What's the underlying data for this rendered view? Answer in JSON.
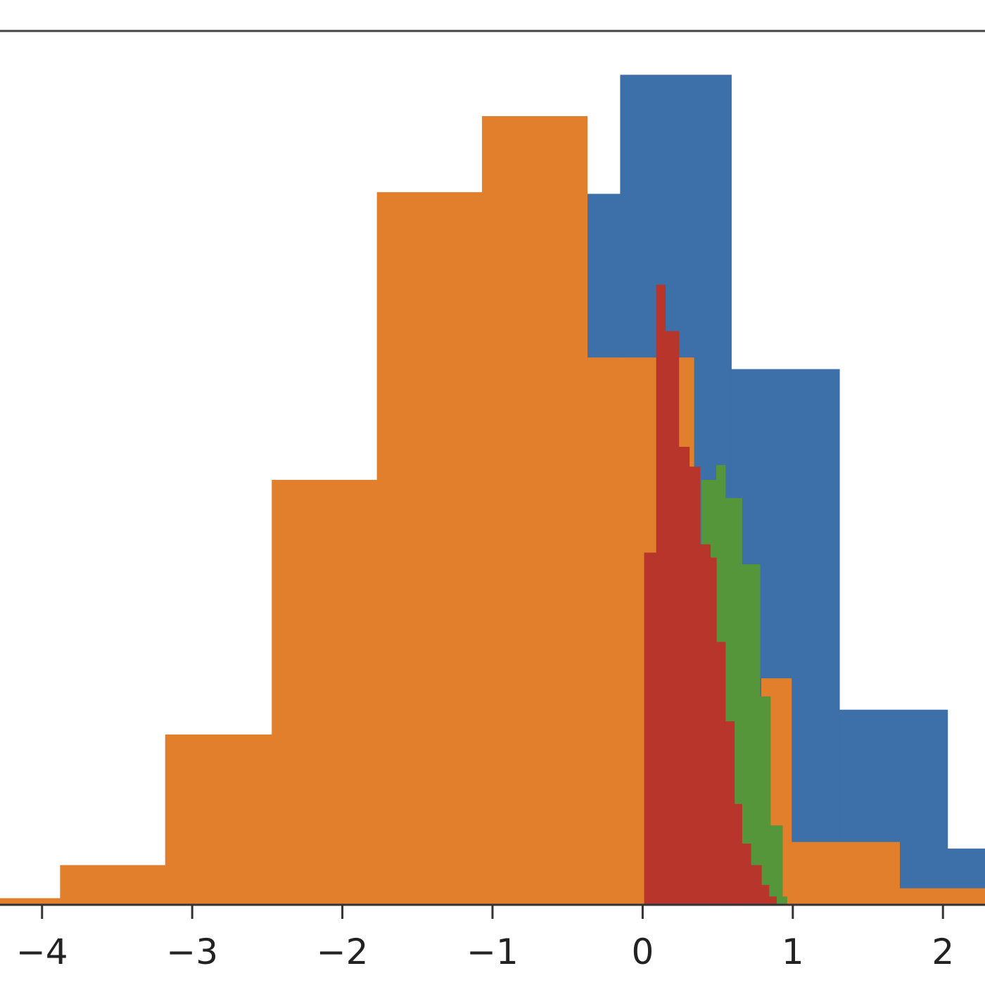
{
  "chart_data": {
    "type": "bar",
    "title": "",
    "xlabel": "",
    "ylabel": "",
    "xlim": [
      -4.28,
      2.28
    ],
    "ylim": [
      -0.6,
      50
    ],
    "grid": false,
    "legend": false,
    "xticks": [
      {
        "value": -4,
        "label": "−4"
      },
      {
        "value": -3,
        "label": "−3"
      },
      {
        "value": -2,
        "label": "−2"
      },
      {
        "value": -1,
        "label": "−1"
      },
      {
        "value": 0,
        "label": "0"
      },
      {
        "value": 1,
        "label": "1"
      },
      {
        "value": 2,
        "label": "2"
      }
    ],
    "series": [
      {
        "color": "#3d6fa8",
        "bins": [
          [
            -0.39,
            -0.15,
            43
          ],
          [
            -0.15,
            0.59,
            50.2
          ],
          [
            0.59,
            1.31,
            32.4
          ],
          [
            1.31,
            2.03,
            11.8
          ],
          [
            2.03,
            2.75,
            3.4
          ]
        ]
      },
      {
        "color": "#e27f2d",
        "bins": [
          [
            -4.33,
            -3.88,
            0.4
          ],
          [
            -3.88,
            -3.18,
            2.4
          ],
          [
            -3.18,
            -2.47,
            10.3
          ],
          [
            -2.47,
            -1.77,
            25.7
          ],
          [
            -1.77,
            -1.07,
            43.1
          ],
          [
            -1.07,
            -0.37,
            47.7
          ],
          [
            -0.37,
            0.34,
            33.1
          ],
          [
            0.79,
            0.99,
            13.7
          ],
          [
            0.99,
            1.71,
            3.8
          ],
          [
            1.71,
            2.41,
            1.0
          ]
        ]
      },
      {
        "color": "#55963a",
        "bins": [
          [
            0.39,
            0.49,
            25.7
          ],
          [
            0.49,
            0.55,
            26.6
          ],
          [
            0.55,
            0.66,
            24.6
          ],
          [
            0.66,
            0.78,
            20.6
          ],
          [
            0.78,
            0.85,
            12.6
          ],
          [
            0.85,
            0.93,
            4.8
          ],
          [
            0.93,
            0.96,
            0.5
          ]
        ]
      },
      {
        "color": "#b8352b",
        "bins": [
          [
            0.01,
            0.09,
            21.3
          ],
          [
            0.09,
            0.15,
            37.5
          ],
          [
            0.15,
            0.24,
            34.7
          ],
          [
            0.24,
            0.31,
            27.7
          ],
          [
            0.31,
            0.38,
            26.5
          ],
          [
            0.38,
            0.45,
            21.8
          ],
          [
            0.45,
            0.49,
            21.0
          ],
          [
            0.49,
            0.55,
            15.9
          ],
          [
            0.55,
            0.61,
            11.1
          ],
          [
            0.61,
            0.66,
            6.1
          ],
          [
            0.66,
            0.72,
            3.7
          ],
          [
            0.72,
            0.79,
            2.4
          ],
          [
            0.79,
            0.84,
            1.2
          ],
          [
            0.84,
            0.89,
            0.5
          ]
        ]
      }
    ]
  }
}
